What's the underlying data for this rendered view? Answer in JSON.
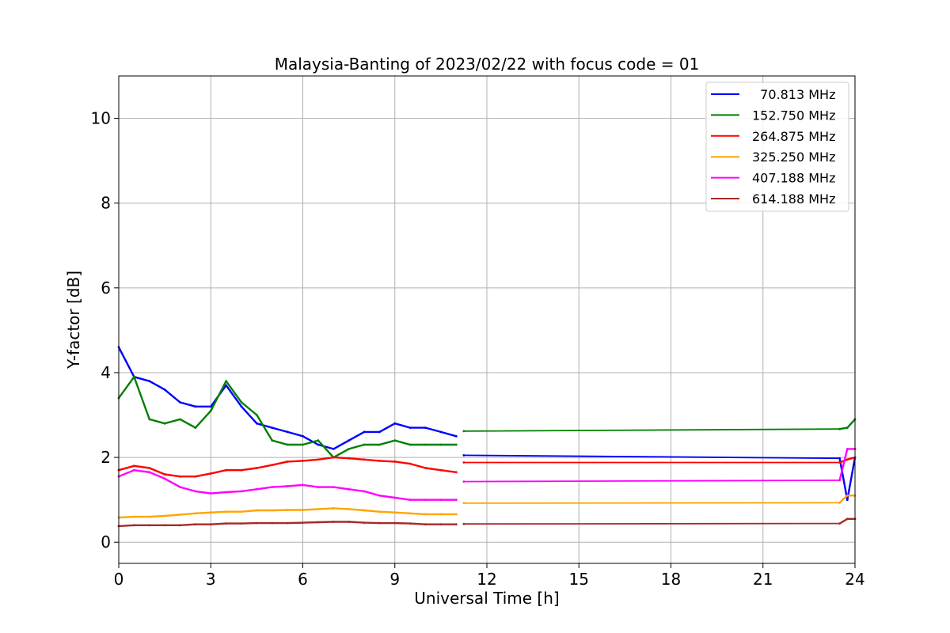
{
  "chart_data": {
    "type": "line",
    "title": "Malaysia-Banting of 2023/02/22 with focus code = 01",
    "xlabel": "Universal Time [h]",
    "ylabel": "Y-factor [dB]",
    "xlim": [
      0,
      24
    ],
    "ylim": [
      -0.5,
      11
    ],
    "xticks": [
      0,
      3,
      6,
      9,
      12,
      15,
      18,
      21,
      24
    ],
    "yticks": [
      0,
      2,
      4,
      6,
      8,
      10
    ],
    "grid": true,
    "legend_position": "top-right",
    "series": [
      {
        "name": "  70.813 MHz",
        "color": "#0000ff",
        "x": [
          0,
          0.5,
          1,
          1.5,
          2,
          2.5,
          3,
          3.5,
          4,
          4.5,
          5,
          5.5,
          6,
          6.5,
          7,
          7.5,
          8,
          8.5,
          9,
          9.5,
          10,
          10.5,
          11,
          11.25,
          23.5,
          23.75,
          24
        ],
        "values": [
          4.6,
          3.9,
          3.8,
          3.6,
          3.3,
          3.2,
          3.2,
          3.7,
          3.2,
          2.8,
          2.7,
          2.6,
          2.5,
          2.3,
          2.2,
          2.4,
          2.6,
          2.6,
          2.8,
          2.7,
          2.7,
          2.6,
          2.5,
          2.05,
          1.98,
          1.0,
          2.0
        ]
      },
      {
        "name": "152.750 MHz",
        "color": "#008000",
        "x": [
          0,
          0.5,
          1,
          1.5,
          2,
          2.5,
          3,
          3.5,
          4,
          4.5,
          5,
          5.5,
          6,
          6.5,
          7,
          7.5,
          8,
          8.5,
          9,
          9.5,
          10,
          10.5,
          11,
          11.25,
          23.5,
          23.75,
          24
        ],
        "values": [
          3.4,
          3.9,
          2.9,
          2.8,
          2.9,
          2.7,
          3.1,
          3.8,
          3.3,
          3.0,
          2.4,
          2.3,
          2.3,
          2.4,
          2.0,
          2.2,
          2.3,
          2.3,
          2.4,
          2.3,
          2.3,
          2.3,
          2.3,
          2.62,
          2.67,
          2.7,
          2.9
        ]
      },
      {
        "name": "264.875 MHz",
        "color": "#ff0000",
        "x": [
          0,
          0.5,
          1,
          1.5,
          2,
          2.5,
          3,
          3.5,
          4,
          4.5,
          5,
          5.5,
          6,
          6.5,
          7,
          7.5,
          8,
          8.5,
          9,
          9.5,
          10,
          10.5,
          11,
          11.25,
          23.5,
          23.75,
          24
        ],
        "values": [
          1.7,
          1.8,
          1.75,
          1.6,
          1.55,
          1.55,
          1.62,
          1.7,
          1.7,
          1.75,
          1.82,
          1.9,
          1.92,
          1.95,
          2.0,
          1.98,
          1.95,
          1.92,
          1.9,
          1.85,
          1.75,
          1.7,
          1.65,
          1.88,
          1.88,
          1.95,
          2.0
        ]
      },
      {
        "name": "325.250 MHz",
        "color": "#ffa500",
        "x": [
          0,
          0.5,
          1,
          1.5,
          2,
          2.5,
          3,
          3.5,
          4,
          4.5,
          5,
          5.5,
          6,
          6.5,
          7,
          7.5,
          8,
          8.5,
          9,
          9.5,
          10,
          10.5,
          11,
          11.25,
          23.5,
          23.75,
          24
        ],
        "values": [
          0.58,
          0.6,
          0.6,
          0.62,
          0.65,
          0.68,
          0.7,
          0.72,
          0.72,
          0.75,
          0.75,
          0.76,
          0.76,
          0.78,
          0.8,
          0.78,
          0.75,
          0.72,
          0.7,
          0.68,
          0.66,
          0.66,
          0.66,
          0.92,
          0.93,
          1.1,
          1.1
        ]
      },
      {
        "name": "407.188 MHz",
        "color": "#ff00ff",
        "x": [
          0,
          0.5,
          1,
          1.5,
          2,
          2.5,
          3,
          3.5,
          4,
          4.5,
          5,
          5.5,
          6,
          6.5,
          7,
          7.5,
          8,
          8.5,
          9,
          9.5,
          10,
          10.5,
          11,
          11.25,
          23.5,
          23.75,
          24
        ],
        "values": [
          1.55,
          1.7,
          1.65,
          1.5,
          1.3,
          1.2,
          1.15,
          1.18,
          1.2,
          1.25,
          1.3,
          1.32,
          1.35,
          1.3,
          1.3,
          1.25,
          1.2,
          1.1,
          1.05,
          1.0,
          1.0,
          1.0,
          1.0,
          1.43,
          1.46,
          2.2,
          2.2
        ]
      },
      {
        "name": "614.188 MHz",
        "color": "#a52a2a",
        "x": [
          0,
          0.5,
          1,
          1.5,
          2,
          2.5,
          3,
          3.5,
          4,
          4.5,
          5,
          5.5,
          6,
          6.5,
          7,
          7.5,
          8,
          8.5,
          9,
          9.5,
          10,
          10.5,
          11,
          11.25,
          23.5,
          23.75,
          24
        ],
        "values": [
          0.38,
          0.4,
          0.4,
          0.4,
          0.4,
          0.42,
          0.42,
          0.44,
          0.44,
          0.45,
          0.45,
          0.45,
          0.46,
          0.47,
          0.48,
          0.48,
          0.46,
          0.45,
          0.45,
          0.44,
          0.42,
          0.42,
          0.42,
          0.43,
          0.44,
          0.55,
          0.55
        ]
      }
    ]
  }
}
